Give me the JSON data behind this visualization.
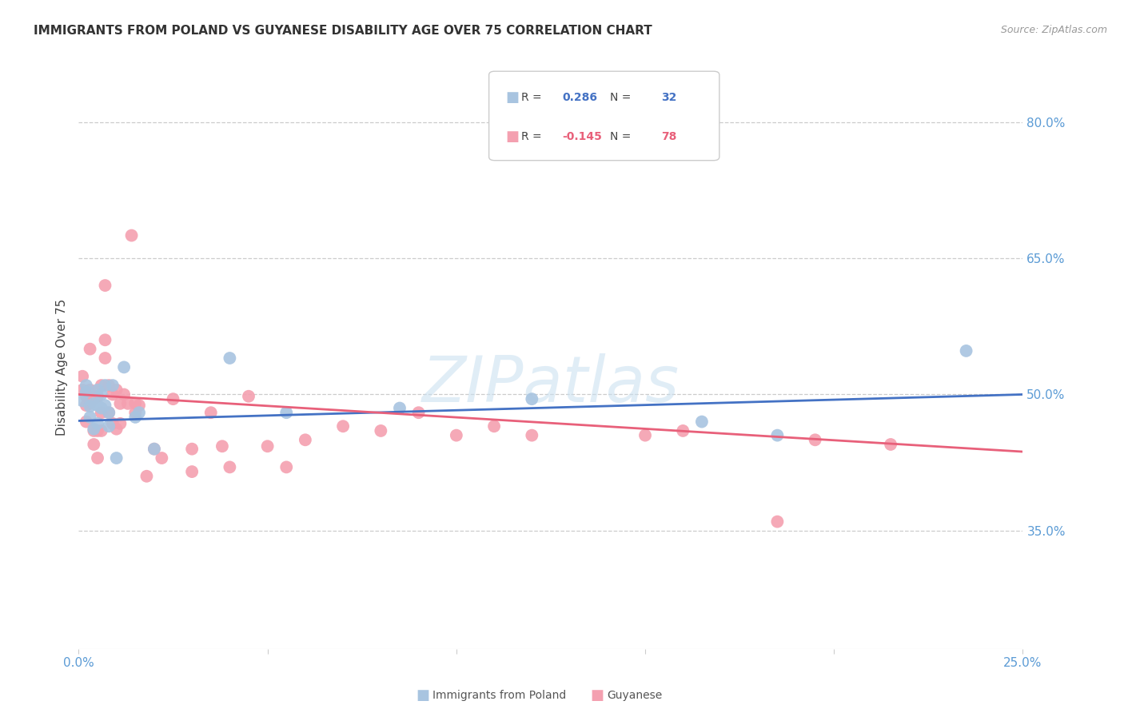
{
  "title": "IMMIGRANTS FROM POLAND VS GUYANESE DISABILITY AGE OVER 75 CORRELATION CHART",
  "source": "Source: ZipAtlas.com",
  "ylabel_label": "Disability Age Over 75",
  "xlim": [
    0.0,
    0.25
  ],
  "ylim": [
    0.22,
    0.84
  ],
  "yticks": [
    0.35,
    0.5,
    0.65,
    0.8
  ],
  "ytick_labels": [
    "35.0%",
    "50.0%",
    "65.0%",
    "80.0%"
  ],
  "xticks": [
    0.0,
    0.05,
    0.1,
    0.15,
    0.2,
    0.25
  ],
  "xtick_labels": [
    "0.0%",
    "",
    "",
    "",
    "",
    "25.0%"
  ],
  "poland_R": 0.286,
  "poland_N": 32,
  "guyanese_R": -0.145,
  "guyanese_N": 78,
  "poland_color": "#a8c4e0",
  "guyanese_color": "#f4a0b0",
  "poland_line_color": "#4472c4",
  "guyanese_line_color": "#e8607a",
  "background_color": "#ffffff",
  "grid_color": "#cccccc",
  "axis_tick_color": "#5b9bd5",
  "poland_scatter_x": [
    0.001,
    0.002,
    0.002,
    0.003,
    0.003,
    0.004,
    0.004,
    0.005,
    0.005,
    0.005,
    0.006,
    0.006,
    0.007,
    0.007,
    0.008,
    0.008,
    0.009,
    0.01,
    0.012,
    0.015,
    0.016,
    0.02,
    0.04,
    0.055,
    0.085,
    0.12,
    0.165,
    0.185,
    0.235
  ],
  "poland_scatter_y": [
    0.493,
    0.503,
    0.51,
    0.487,
    0.475,
    0.49,
    0.462,
    0.505,
    0.488,
    0.468,
    0.5,
    0.485,
    0.51,
    0.488,
    0.48,
    0.465,
    0.51,
    0.43,
    0.53,
    0.475,
    0.48,
    0.44,
    0.54,
    0.48,
    0.485,
    0.495,
    0.47,
    0.455,
    0.548
  ],
  "guyanese_scatter_x": [
    0.001,
    0.001,
    0.002,
    0.002,
    0.002,
    0.003,
    0.003,
    0.003,
    0.003,
    0.004,
    0.004,
    0.004,
    0.005,
    0.005,
    0.005,
    0.006,
    0.006,
    0.006,
    0.007,
    0.007,
    0.007,
    0.008,
    0.008,
    0.009,
    0.009,
    0.01,
    0.01,
    0.011,
    0.011,
    0.012,
    0.013,
    0.014,
    0.015,
    0.015,
    0.016,
    0.018,
    0.02,
    0.022,
    0.025,
    0.03,
    0.03,
    0.035,
    0.038,
    0.04,
    0.045,
    0.05,
    0.055,
    0.06,
    0.07,
    0.08,
    0.09,
    0.1,
    0.11,
    0.12,
    0.15,
    0.16,
    0.185,
    0.195,
    0.215
  ],
  "guyanese_scatter_y": [
    0.505,
    0.52,
    0.498,
    0.488,
    0.47,
    0.505,
    0.5,
    0.49,
    0.55,
    0.495,
    0.46,
    0.445,
    0.498,
    0.46,
    0.43,
    0.51,
    0.48,
    0.46,
    0.56,
    0.54,
    0.62,
    0.51,
    0.48,
    0.5,
    0.468,
    0.505,
    0.462,
    0.49,
    0.468,
    0.5,
    0.49,
    0.675,
    0.49,
    0.48,
    0.488,
    0.41,
    0.44,
    0.43,
    0.495,
    0.44,
    0.415,
    0.48,
    0.443,
    0.42,
    0.498,
    0.443,
    0.42,
    0.45,
    0.465,
    0.46,
    0.48,
    0.455,
    0.465,
    0.455,
    0.455,
    0.46,
    0.36,
    0.45,
    0.445
  ],
  "poland_line_x0": 0.0,
  "poland_line_y0": 0.471,
  "poland_line_x1": 0.25,
  "poland_line_y1": 0.5,
  "guyanese_line_x0": 0.0,
  "guyanese_line_y0": 0.5,
  "guyanese_line_x1": 0.25,
  "guyanese_line_y1": 0.437
}
